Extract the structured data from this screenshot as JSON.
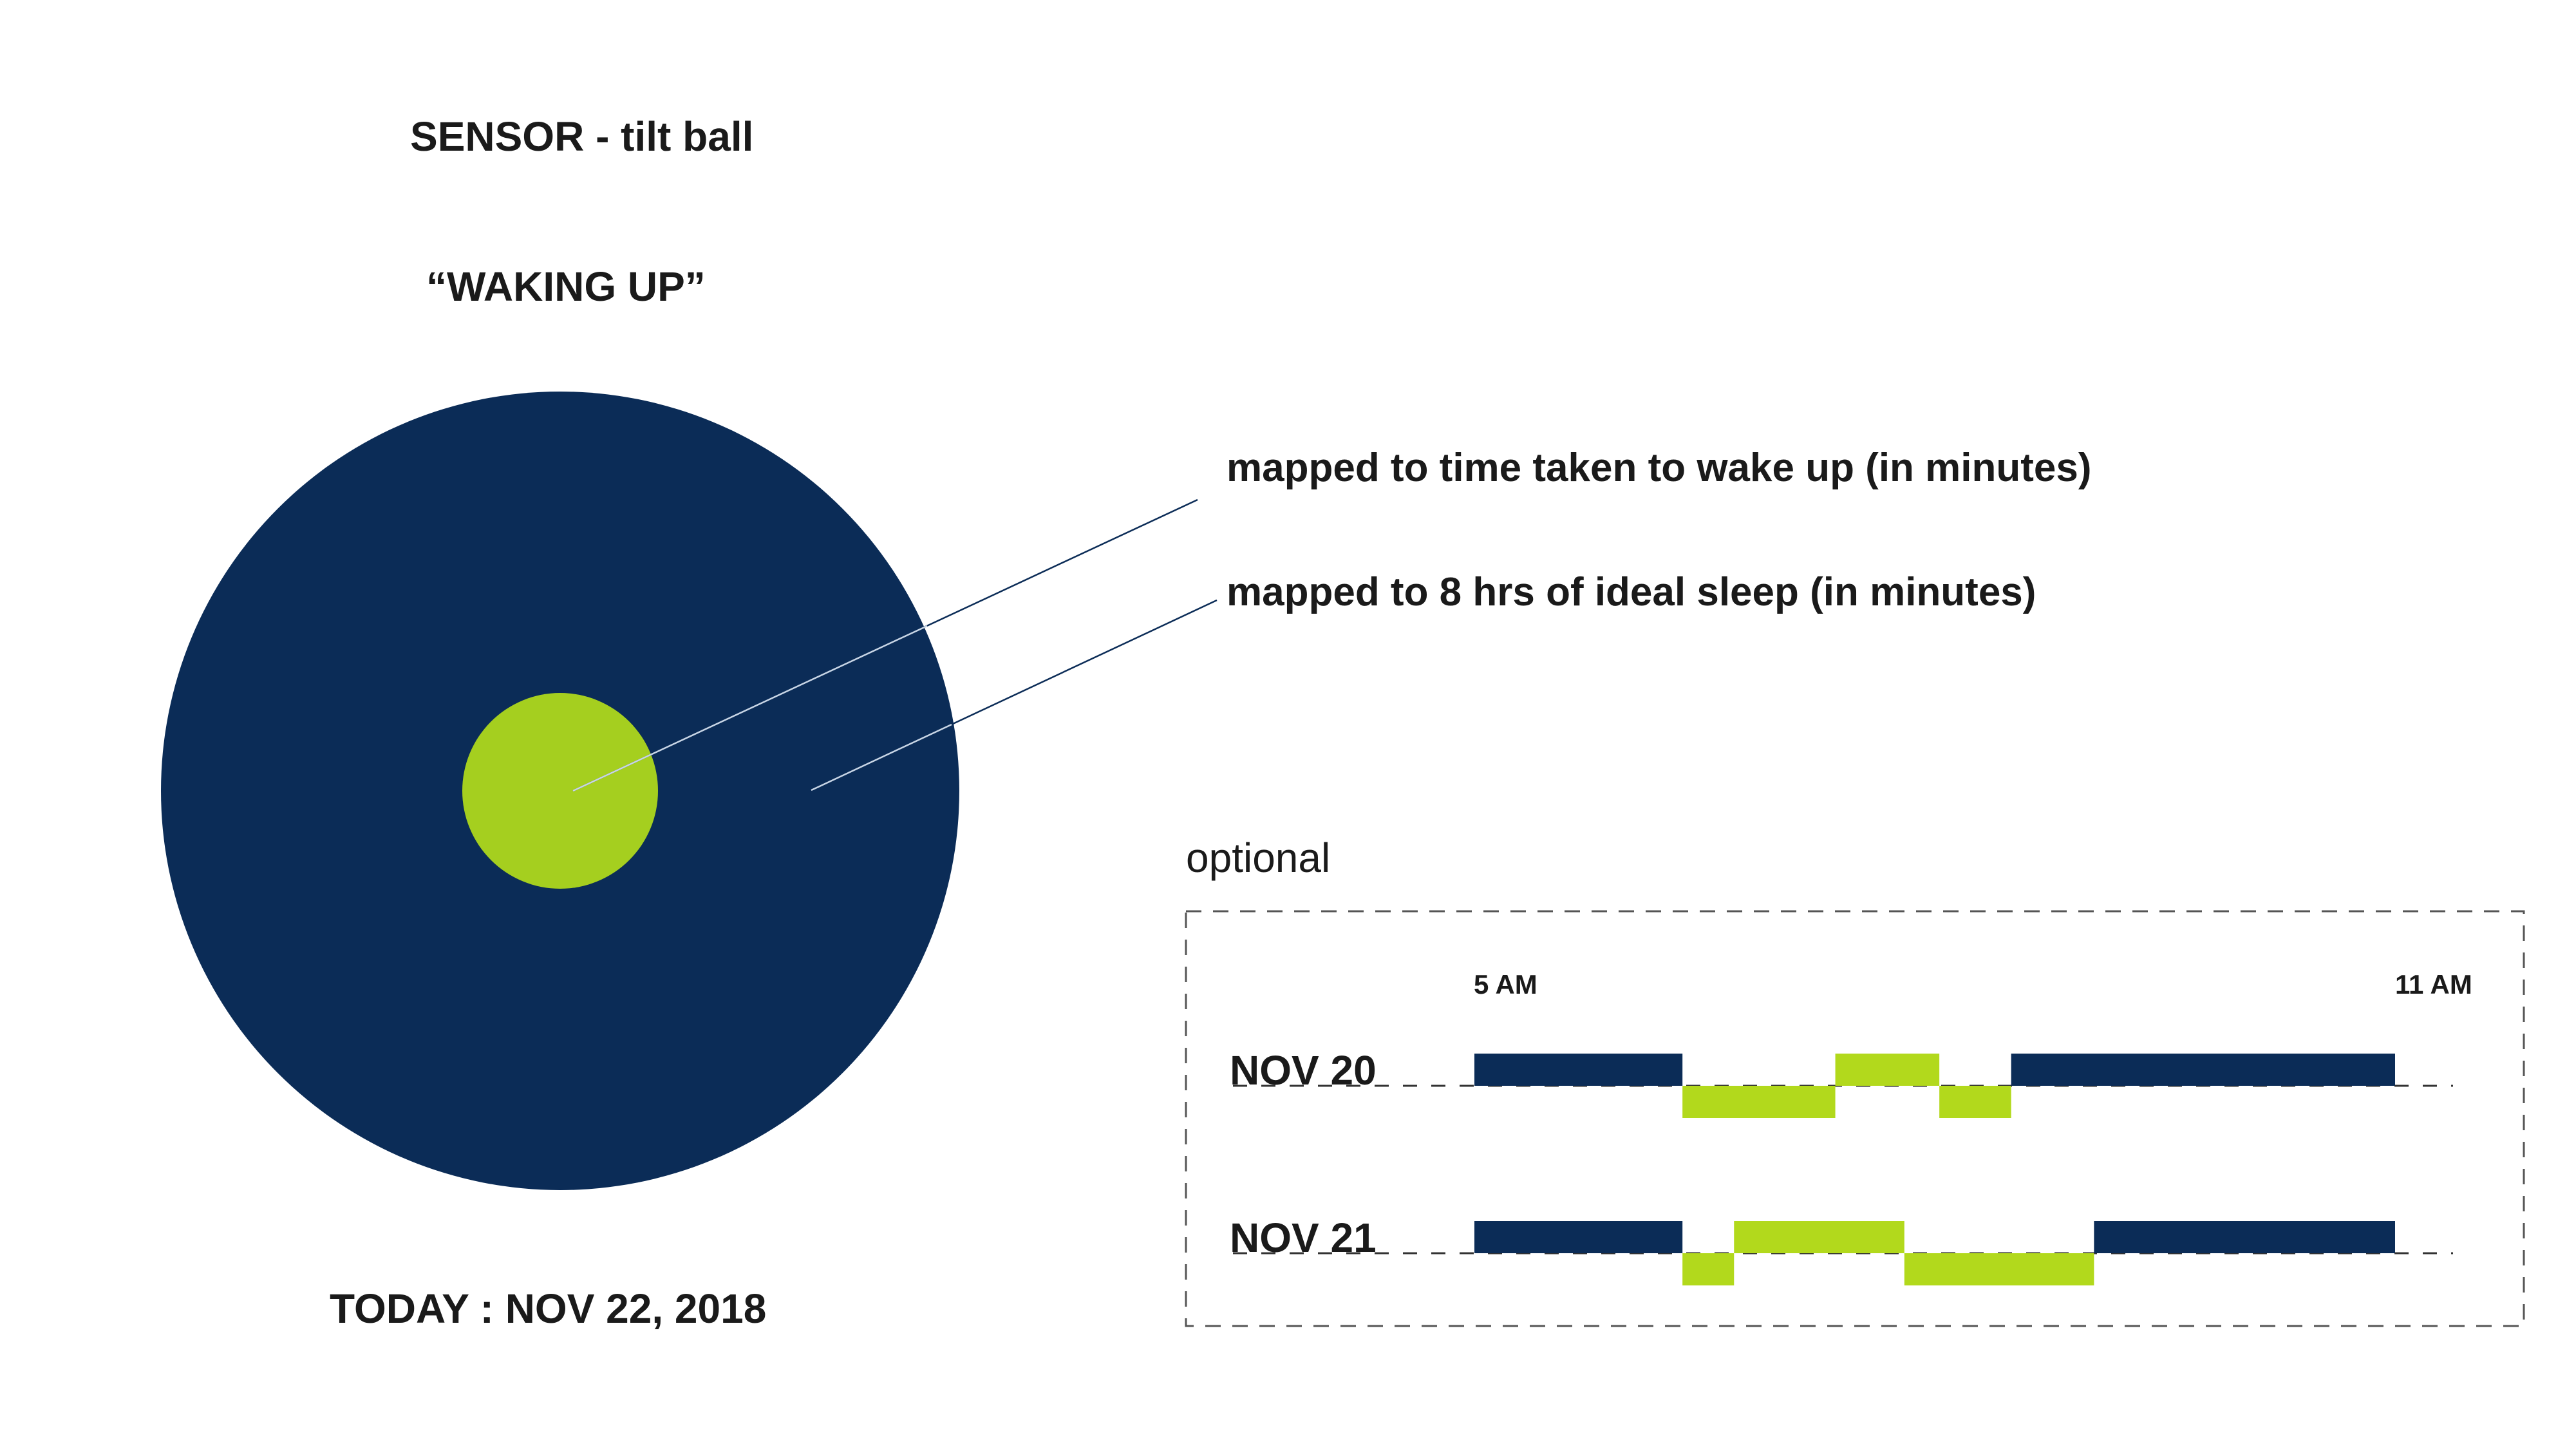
{
  "header": {
    "sensor_title": "SENSOR - tilt ball",
    "state_label": "“WAKING UP”"
  },
  "legend": {
    "wake_time_label": "mapped to time taken to wake up (in minutes)",
    "ideal_sleep_label": "mapped to 8 hrs of ideal sleep (in minutes)"
  },
  "footer": {
    "today_label": "TODAY : NOV 22, 2018"
  },
  "optional_panel": {
    "title": "optional",
    "axis": {
      "start_label": "5 AM",
      "end_label": "11 AM"
    },
    "days": [
      {
        "label": "NOV 20",
        "segments": [
          {
            "state": "sleep",
            "start": 0.0,
            "end": 0.226
          },
          {
            "state": "awake",
            "start": 0.226,
            "end": 0.392
          },
          {
            "state": "sleep-light",
            "start": 0.392,
            "end": 0.505
          },
          {
            "state": "awake",
            "start": 0.505,
            "end": 0.583
          },
          {
            "state": "sleep",
            "start": 0.583,
            "end": 1.0
          }
        ]
      },
      {
        "label": "NOV 21",
        "segments": [
          {
            "state": "sleep",
            "start": 0.0,
            "end": 0.226
          },
          {
            "state": "awake",
            "start": 0.226,
            "end": 0.282
          },
          {
            "state": "sleep-light",
            "start": 0.282,
            "end": 0.467
          },
          {
            "state": "awake",
            "start": 0.467,
            "end": 0.673
          },
          {
            "state": "sleep",
            "start": 0.673,
            "end": 1.0
          }
        ]
      }
    ]
  },
  "colors": {
    "navy": "#0b2c57",
    "lime": "#a5cf1f",
    "lime_bright": "#b2d91c",
    "text": "#1a1a1a",
    "dash": "#555555"
  }
}
